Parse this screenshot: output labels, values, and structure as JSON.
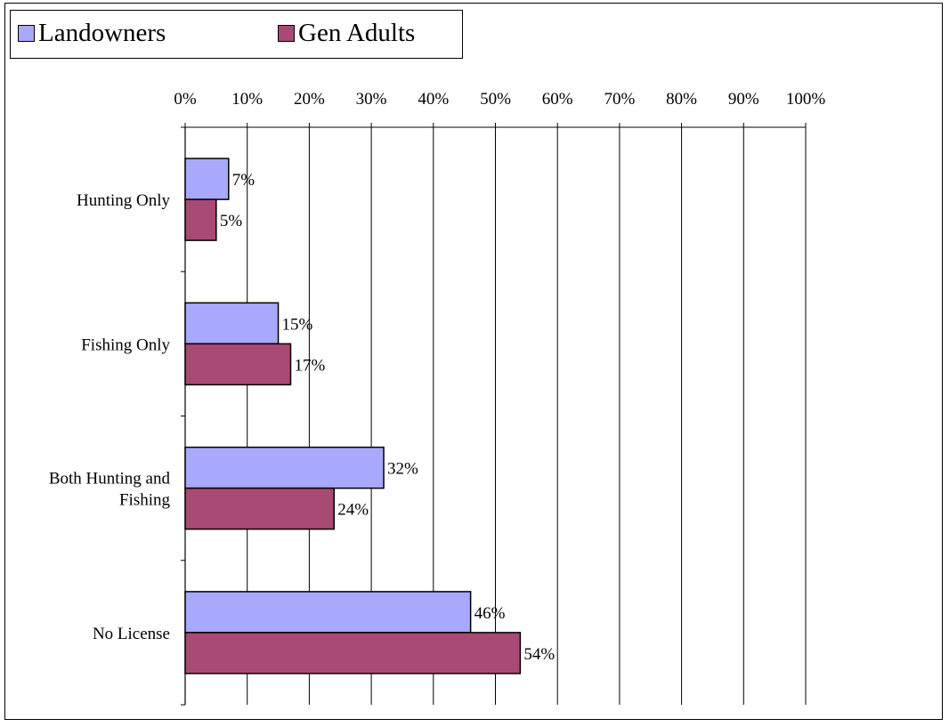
{
  "chart_data": {
    "type": "bar",
    "orientation": "horizontal",
    "categories": [
      [
        "Hunting Only"
      ],
      [
        "Fishing Only"
      ],
      [
        "Both Hunting and",
        "Fishing"
      ],
      [
        "No License"
      ]
    ],
    "series": [
      {
        "name": "Landowners",
        "color": "#a8a8fc",
        "values": [
          7,
          15,
          32,
          46
        ],
        "labels": [
          "7%",
          "15%",
          "32%",
          "46%"
        ]
      },
      {
        "name": "Gen Adults",
        "color": "#a84a74",
        "values": [
          5,
          17,
          24,
          54
        ],
        "labels": [
          "5%",
          "17%",
          "24%",
          "54%"
        ]
      }
    ],
    "xlim": [
      0,
      100
    ],
    "xticks": [
      0,
      10,
      20,
      30,
      40,
      50,
      60,
      70,
      80,
      90,
      100
    ],
    "xtick_labels": [
      "0%",
      "10%",
      "20%",
      "30%",
      "40%",
      "50%",
      "60%",
      "70%",
      "80%",
      "90%",
      "100%"
    ],
    "xaxis_position": "top",
    "grid": true,
    "legend": "top-left"
  }
}
